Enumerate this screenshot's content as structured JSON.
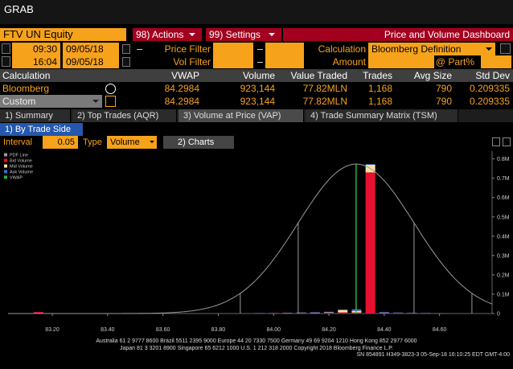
{
  "window_title": "GRAB",
  "toolbar": {
    "security": "FTV UN Equity",
    "actions": "98) Actions",
    "settings": "99) Settings",
    "dashboard": "Price and Volume Dashboard"
  },
  "filters": {
    "start_time": "09:30",
    "start_date": "09/05/18",
    "end_time": "16:04",
    "end_date": "09/05/18",
    "price_filter": "Price Filter",
    "vol_filter": "Vol Filter",
    "calculation_label": "Calculation",
    "calculation": "Bloomberg Definition",
    "amount": "Amount",
    "part": "@ Part%"
  },
  "table": {
    "columns": [
      "Calculation",
      "VWAP",
      "Volume",
      "Value Traded",
      "Trades",
      "Avg Size",
      "Std Dev"
    ],
    "rows": [
      [
        "Bloomberg",
        "84.2984",
        "923,144",
        "77.82MLN",
        "1,168",
        "790",
        "0.209335"
      ],
      [
        "Custom",
        "84.2984",
        "923,144",
        "77.82MLN",
        "1,168",
        "790",
        "0.209335"
      ]
    ]
  },
  "tabs": [
    "1) Summary",
    "2) Top Trades (AQR)",
    "3) Volume at Price (VAP)",
    "4) Trade Summary Matrix (TSM)"
  ],
  "subtab": "1) By Trade Side",
  "controls": {
    "interval_label": "Interval",
    "interval": "0.05",
    "type_label": "Type",
    "type": "Volume",
    "charts": "2) Charts"
  },
  "chart": {
    "type": "stacked-bar",
    "pdf_name": "PDF Line",
    "pdf_color": "#9a9a9a",
    "vwap_name": "VWAP",
    "vwap_color": "#22b14c",
    "vwap": 84.2984,
    "std_dev": 0.209335,
    "x": [
      83.15,
      83.95,
      84.0,
      84.05,
      84.1,
      84.15,
      84.2,
      84.25,
      84.3,
      84.35,
      84.4,
      84.45,
      84.5,
      84.55,
      84.6,
      84.65,
      84.7
    ],
    "series": [
      {
        "name": "Bid Volume",
        "color": "#e8102f",
        "values": [
          8000,
          1000,
          2000,
          1500,
          3000,
          2500,
          4000,
          6000,
          5000,
          730000,
          3000,
          2000,
          2000,
          1500,
          1000,
          500,
          0
        ]
      },
      {
        "name": "Mid Volume",
        "color": "#f3e3a3",
        "values": [
          0,
          0,
          0,
          500,
          1000,
          1500,
          2000,
          12000,
          9000,
          40000,
          1000,
          500,
          0,
          0,
          0,
          0,
          0
        ]
      },
      {
        "name": "Ask Volume",
        "color": "#3d6ecf",
        "values": [
          0,
          2000,
          1500,
          2500,
          2000,
          3000,
          3000,
          3000,
          8000,
          3000,
          4000,
          3000,
          2500,
          2000,
          1500,
          1000,
          1000
        ]
      }
    ],
    "xlim": [
      83.04,
      84.79
    ],
    "xticks": [
      {
        "value": 83.2,
        "label": "83.20"
      },
      {
        "value": 83.4,
        "label": "83.40"
      },
      {
        "value": 83.6,
        "label": "83.60"
      },
      {
        "value": 83.8,
        "label": "83.80"
      },
      {
        "value": 84.0,
        "label": "84.00"
      },
      {
        "value": 84.2,
        "label": "84.20"
      },
      {
        "value": 84.4,
        "label": "84.40"
      },
      {
        "value": 84.6,
        "label": "84.60"
      }
    ],
    "ylim": [
      0,
      840000
    ],
    "yticks": [
      0,
      {
        "value": 100000,
        "label": "0.1M"
      },
      {
        "value": 200000,
        "label": "0.2M"
      },
      {
        "value": 300000,
        "label": "0.3M"
      },
      {
        "value": 400000,
        "label": "0.4M"
      },
      {
        "value": 500000,
        "label": "0.5M"
      },
      {
        "value": 600000,
        "label": "0.6M"
      },
      {
        "value": 700000,
        "label": "0.7M"
      },
      {
        "value": 800000,
        "label": "0.8M"
      }
    ]
  },
  "footer": [
    "Australia 61 2 9777 8600 Brazil 5511 2395 9000 Europe 44 20 7330 7500 Germany 49 69 9204 1210 Hong Kong 852 2977 6000",
    "Japan 81 3 3201 8900      Singapore 65 6212 1000      U.S. 1 212 318 2000      Copyright 2018 Bloomberg Finance L.P.",
    "SN 854891 H349-3823-3 05-Sep-18 16:10:25 EDT  GMT-4:00"
  ]
}
